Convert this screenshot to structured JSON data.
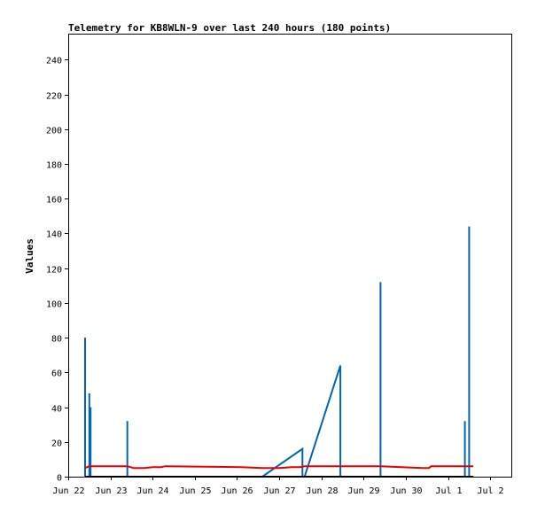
{
  "chart_data": {
    "type": "line",
    "title": "Telemetry for KB8WLN-9 over last 240 hours (180 points)",
    "xlabel": "",
    "ylabel": "Values",
    "x_ticks": [
      "Jun 22",
      "Jun 23",
      "Jun 24",
      "Jun 25",
      "Jun 26",
      "Jun 27",
      "Jun 28",
      "Jun 29",
      "Jun 30",
      "Jul 1",
      "Jul 2"
    ],
    "y_ticks": [
      0,
      20,
      40,
      60,
      80,
      100,
      120,
      140,
      160,
      180,
      200,
      220,
      240
    ],
    "xlim": [
      0,
      10.5
    ],
    "ylim": [
      0,
      255
    ],
    "grid": false,
    "legend": "none",
    "series": [
      {
        "color": "#0066b3",
        "points": [
          [
            0.4,
            0
          ],
          [
            0.4,
            80
          ],
          [
            0.4,
            0
          ],
          [
            0.5,
            0
          ],
          [
            0.5,
            48
          ],
          [
            0.5,
            0
          ],
          [
            0.53,
            0
          ],
          [
            0.53,
            40
          ],
          [
            0.53,
            0
          ],
          [
            1.4,
            0
          ],
          [
            1.4,
            32
          ],
          [
            1.4,
            0
          ],
          [
            4.6,
            0
          ],
          [
            5.55,
            16
          ],
          [
            5.55,
            0
          ],
          [
            5.6,
            0
          ],
          [
            6.45,
            64
          ],
          [
            6.45,
            0
          ],
          [
            7.4,
            0
          ],
          [
            7.4,
            112
          ],
          [
            7.4,
            0
          ],
          [
            9.4,
            0
          ],
          [
            9.4,
            32
          ],
          [
            9.4,
            0
          ],
          [
            9.5,
            0
          ],
          [
            9.5,
            144
          ],
          [
            9.5,
            0
          ],
          [
            9.6,
            0
          ]
        ]
      },
      {
        "color": "#e60000",
        "points": [
          [
            0.4,
            5
          ],
          [
            0.5,
            6
          ],
          [
            1.4,
            6
          ],
          [
            1.55,
            5
          ],
          [
            1.8,
            5
          ],
          [
            2.0,
            5.5
          ],
          [
            2.2,
            5.5
          ],
          [
            2.3,
            6
          ],
          [
            4.1,
            5.5
          ],
          [
            4.6,
            5
          ],
          [
            5.0,
            5
          ],
          [
            5.3,
            5.5
          ],
          [
            5.5,
            5.5
          ],
          [
            5.6,
            6
          ],
          [
            7.4,
            6
          ],
          [
            7.9,
            5.5
          ],
          [
            8.4,
            5
          ],
          [
            8.55,
            5
          ],
          [
            8.6,
            6
          ],
          [
            9.6,
            6
          ]
        ]
      },
      {
        "color": "#000000",
        "points": [
          [
            0.4,
            0
          ],
          [
            9.6,
            0
          ]
        ]
      }
    ]
  }
}
